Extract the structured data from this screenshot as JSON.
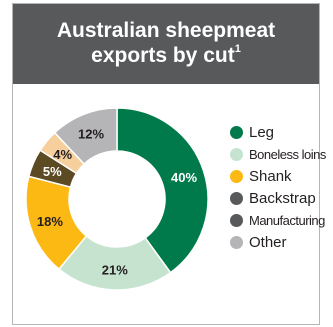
{
  "header": {
    "title_line1": "Australian sheepmeat",
    "title_line2": "exports by cut",
    "footnote_mark": "1"
  },
  "chart_data": {
    "type": "pie",
    "donut": true,
    "title": "Australian sheepmeat exports by cut",
    "legend_position": "right",
    "slices": [
      {
        "name": "Leg",
        "value": 40,
        "label": "40%",
        "color": "#007a4b"
      },
      {
        "name": "Boneless loins",
        "value": 21,
        "label": "21%",
        "color": "#c5e3cf"
      },
      {
        "name": "Shank",
        "value": 18,
        "label": "18%",
        "color": "#fdb913"
      },
      {
        "name": "Backstrap",
        "value": 5,
        "label": "5%",
        "color": "#5c4a22"
      },
      {
        "name": "Manufacturing",
        "value": 4,
        "label": "4%",
        "color": "#f6cf9c"
      },
      {
        "name": "Other",
        "value": 12,
        "label": "12%",
        "color": "#b5b5b7"
      }
    ]
  },
  "legend": {
    "items": [
      {
        "label": "Leg",
        "color": "#007a4b"
      },
      {
        "label": "Boneless loins",
        "color": "#c5e3cf"
      },
      {
        "label": "Shank",
        "color": "#fdb913"
      },
      {
        "label": "Backstrap",
        "color": "#58595b"
      },
      {
        "label": "Manufacturing",
        "color": "#58595b"
      },
      {
        "label": "Other",
        "color": "#b5b5b7"
      }
    ]
  }
}
